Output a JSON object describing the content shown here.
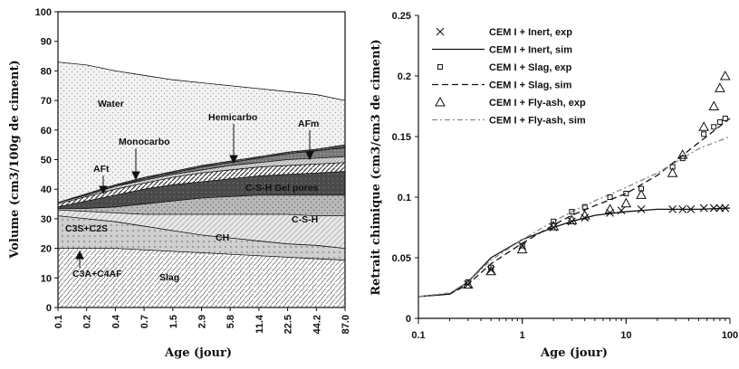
{
  "chart_data": [
    {
      "type": "area",
      "xlabel": "Age (jour)",
      "ylabel": "Volume (cm3/100g de ciment)",
      "ylim": [
        0,
        100
      ],
      "yticks": [
        0,
        10,
        20,
        30,
        40,
        50,
        60,
        70,
        80,
        90,
        100
      ],
      "x_tick_labels": [
        "0.1",
        "0.2",
        "0.4",
        "0.7",
        "1.5",
        "2.9",
        "5.8",
        "11.4",
        "22.5",
        "44.2",
        "87.0"
      ],
      "boundaries": [
        {
          "name": "Slag",
          "values": [
            20,
            20,
            20,
            19.5,
            19,
            18.5,
            18,
            17.5,
            17,
            16.5,
            16
          ]
        },
        {
          "name": "CH",
          "values": [
            31,
            30,
            29,
            27.5,
            26,
            24.5,
            23.5,
            22.5,
            21.5,
            21,
            20
          ]
        },
        {
          "name": "C3S+C2S",
          "values": [
            33,
            32.5,
            32,
            31.5,
            31.5,
            31.5,
            31.5,
            31.5,
            31.5,
            31,
            31
          ]
        },
        {
          "name": "C-S-H",
          "values": [
            33.5,
            33.5,
            34,
            35,
            36,
            37,
            37.5,
            38,
            38,
            38,
            38
          ]
        },
        {
          "name": "C-S-H Gel pores",
          "values": [
            34,
            36,
            38,
            40,
            41.5,
            42.5,
            43.5,
            44.5,
            45,
            45.5,
            46
          ]
        },
        {
          "name": "AFt",
          "values": [
            35,
            37.5,
            40,
            42,
            44,
            45.5,
            46.5,
            47.5,
            48,
            48.5,
            49
          ]
        },
        {
          "name": "Monocarbo",
          "values": [
            35.5,
            38,
            41,
            43,
            45,
            46.5,
            48,
            49,
            50,
            50.5,
            51
          ]
        },
        {
          "name": "Hemicarbo",
          "values": [
            35.5,
            38,
            41,
            43.5,
            45.5,
            47.5,
            49,
            50.5,
            52,
            53,
            54
          ]
        },
        {
          "name": "AFm",
          "values": [
            35.5,
            38.5,
            41.5,
            44,
            46,
            48,
            49.5,
            51,
            52.5,
            53.5,
            55
          ]
        },
        {
          "name": "Water",
          "values": [
            83,
            82,
            80,
            78.5,
            77,
            76,
            75,
            74,
            73,
            72,
            70
          ]
        }
      ],
      "region_labels": [
        "Water",
        "Hemicarbo",
        "AFm",
        "Monocarbo",
        "AFt",
        "C-S-H Gel pores",
        "C-S-H",
        "C3S+C2S",
        "CH",
        "C3A+C4AF",
        "Slag"
      ]
    },
    {
      "type": "scatter",
      "xlabel": "Age (jour)",
      "ylabel": "Retrait chimique (cm3/cm3 de ciment)",
      "xscale": "log",
      "xlim": [
        0.1,
        100
      ],
      "ylim": [
        0,
        0.25
      ],
      "xticks": [
        "0.1",
        "1",
        "10",
        "100"
      ],
      "yticks": [
        "0",
        "0.05",
        "0.1",
        "0.15",
        "0.2",
        "0.25"
      ],
      "legend_position": "top-right",
      "series": [
        {
          "name": "CEM I + Inert, exp",
          "kind": "points",
          "marker": "x",
          "x": [
            0.3,
            0.5,
            1,
            2,
            3,
            4,
            7,
            9,
            14,
            28,
            35,
            42,
            56,
            70,
            80,
            90
          ],
          "y": [
            0.028,
            0.04,
            0.06,
            0.075,
            0.08,
            0.083,
            0.087,
            0.089,
            0.09,
            0.09,
            0.09,
            0.09,
            0.091,
            0.091,
            0.091,
            0.091
          ]
        },
        {
          "name": "CEM I + Inert, sim",
          "kind": "line",
          "dash": "solid",
          "x": [
            0.1,
            0.2,
            0.3,
            0.5,
            1,
            2,
            3,
            5,
            10,
            20,
            50,
            100
          ],
          "y": [
            0.018,
            0.02,
            0.03,
            0.05,
            0.065,
            0.075,
            0.08,
            0.085,
            0.088,
            0.09,
            0.09,
            0.091
          ]
        },
        {
          "name": "CEM I + Slag, exp",
          "kind": "points",
          "marker": "square",
          "x": [
            0.3,
            0.5,
            1,
            2,
            3,
            4,
            7,
            10,
            14,
            28,
            35,
            56,
            70,
            80,
            90
          ],
          "y": [
            0.03,
            0.042,
            0.06,
            0.08,
            0.088,
            0.092,
            0.1,
            0.103,
            0.107,
            0.125,
            0.132,
            0.152,
            0.158,
            0.162,
            0.165
          ]
        },
        {
          "name": "CEM I + Slag, sim",
          "kind": "line",
          "dash": "dashed",
          "x": [
            0.1,
            0.2,
            0.3,
            0.5,
            1,
            2,
            3,
            5,
            10,
            20,
            50,
            100
          ],
          "y": [
            0.018,
            0.02,
            0.028,
            0.045,
            0.062,
            0.077,
            0.085,
            0.093,
            0.103,
            0.118,
            0.145,
            0.165
          ]
        },
        {
          "name": "CEM I + Fly-ash, exp",
          "kind": "points",
          "marker": "triangle",
          "x": [
            0.3,
            0.5,
            1,
            2,
            3,
            4,
            7,
            10,
            14,
            28,
            35,
            56,
            70,
            80,
            90
          ],
          "y": [
            0.028,
            0.039,
            0.057,
            0.076,
            0.081,
            0.085,
            0.09,
            0.095,
            0.102,
            0.12,
            0.135,
            0.158,
            0.175,
            0.19,
            0.2
          ]
        },
        {
          "name": "CEM I + Fly-ash, sim",
          "kind": "line",
          "dash": "dash-dot",
          "x": [
            0.1,
            0.2,
            0.3,
            0.5,
            1,
            2,
            3,
            5,
            10,
            20,
            50,
            100
          ],
          "y": [
            0.018,
            0.021,
            0.03,
            0.048,
            0.065,
            0.08,
            0.088,
            0.097,
            0.108,
            0.12,
            0.14,
            0.15
          ]
        }
      ]
    }
  ]
}
